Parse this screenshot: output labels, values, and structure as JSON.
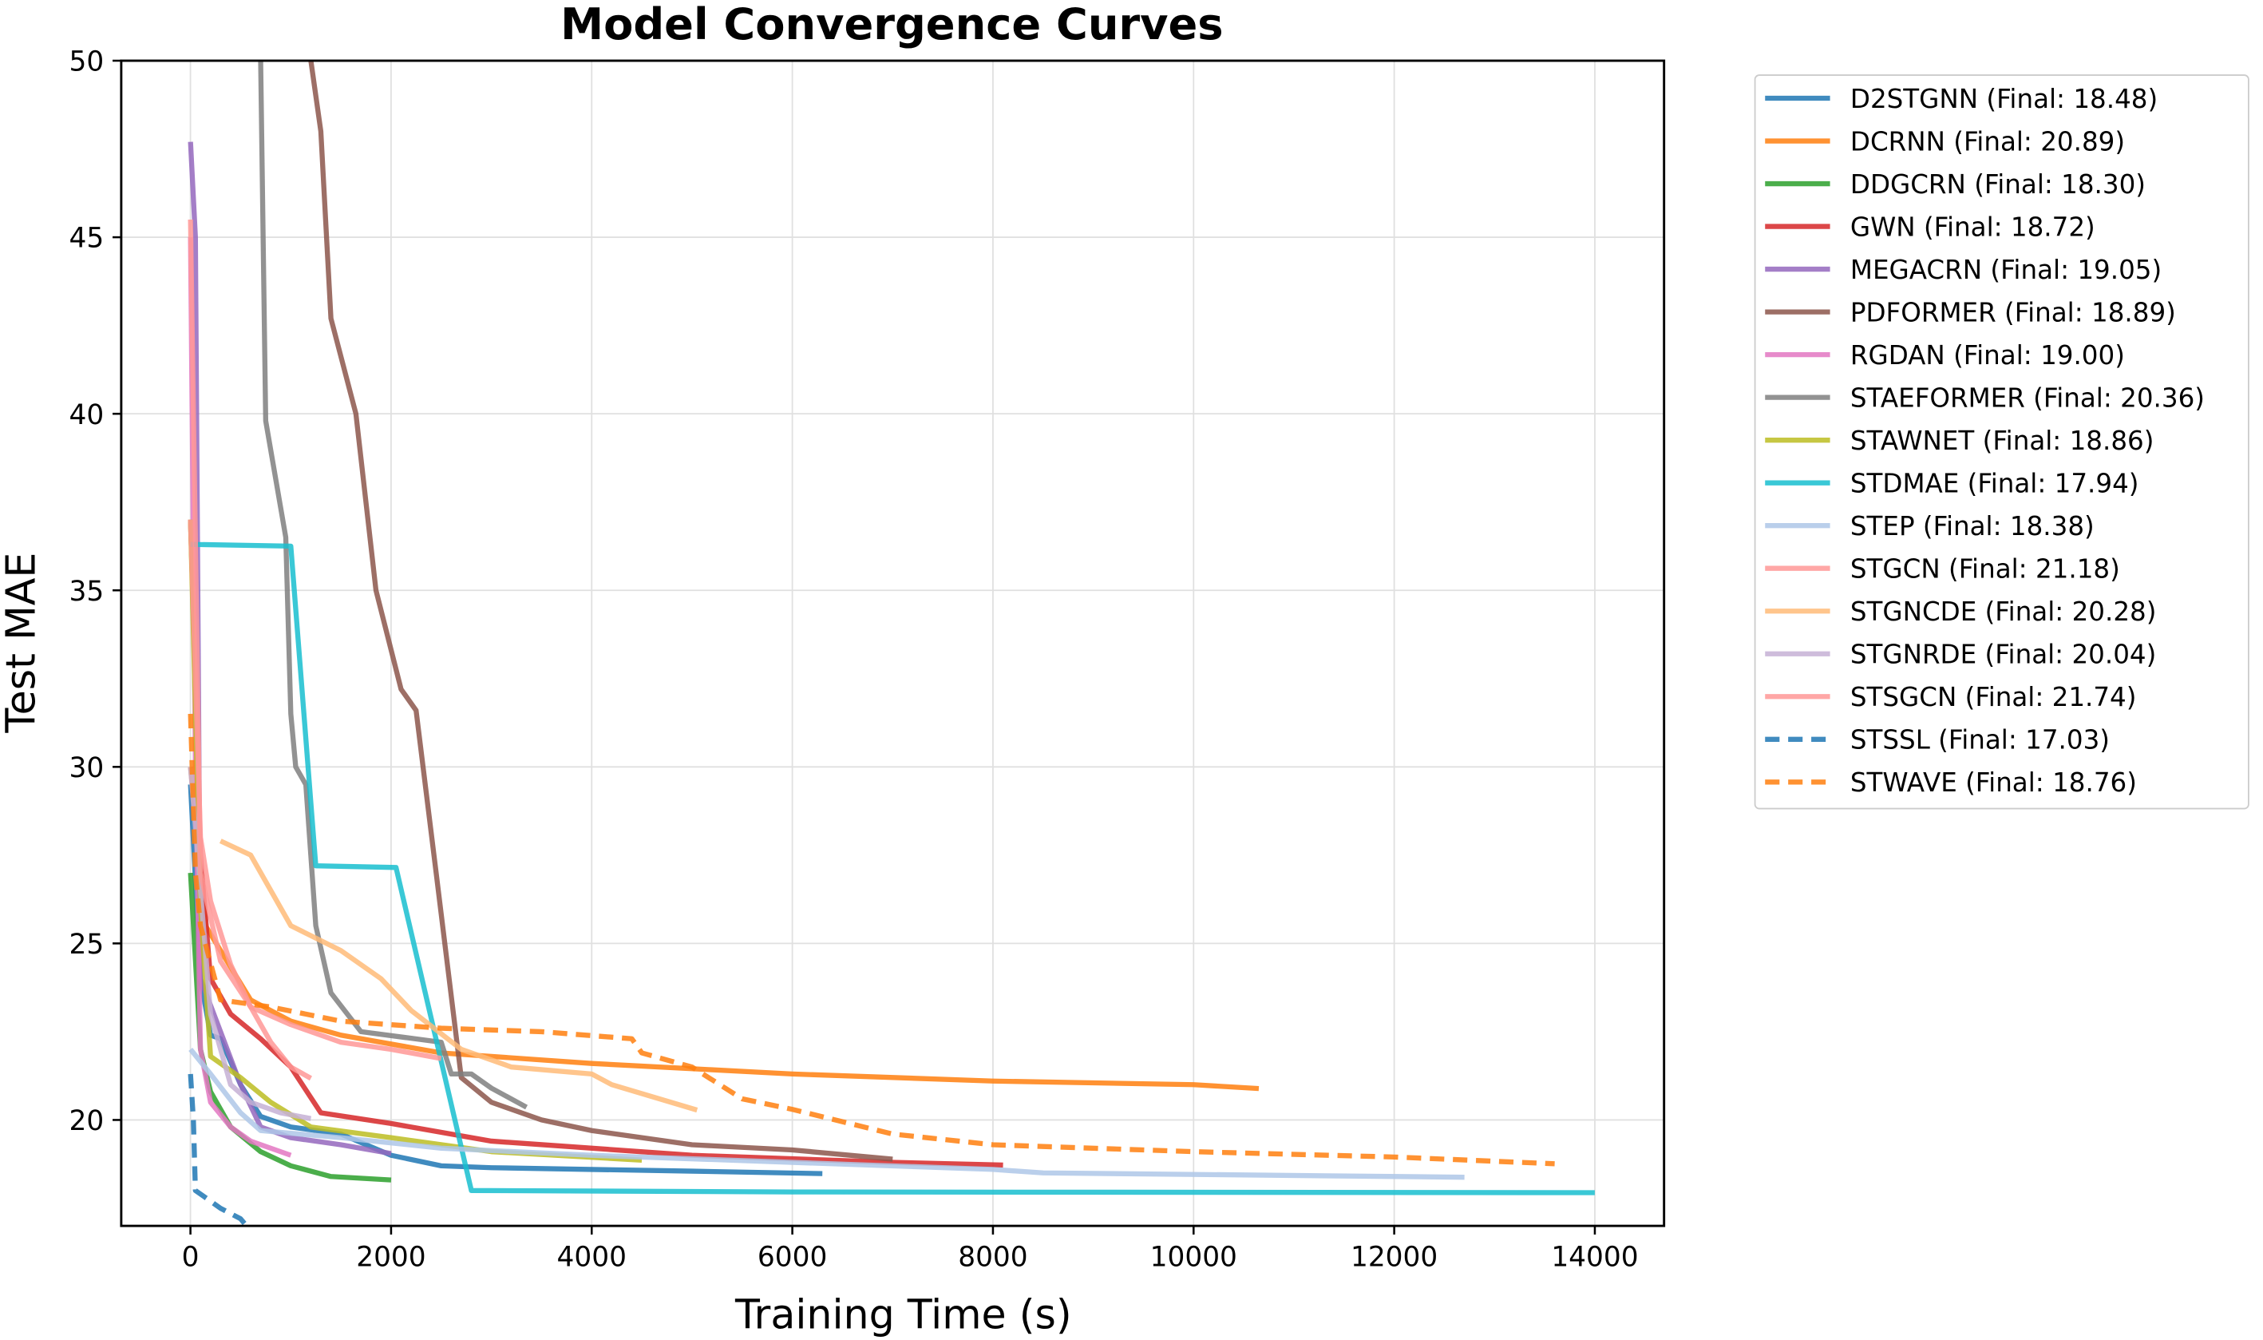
{
  "chart_data": {
    "type": "line",
    "title": "Model Convergence Curves",
    "xlabel": "Training Time (s)",
    "ylabel": "Test MAE",
    "xlim": [
      -690,
      14690
    ],
    "ylim": [
      17.0,
      50
    ],
    "xticks": [
      0,
      2000,
      4000,
      6000,
      8000,
      10000,
      12000,
      14000
    ],
    "yticks": [
      20,
      25,
      30,
      35,
      40,
      45,
      50
    ],
    "grid": true,
    "legend_position": "outside-right",
    "series": [
      {
        "name": "D2STGNN (Final: 18.48)",
        "color": "#1f77b4",
        "dash": false,
        "points": [
          [
            0,
            29.5
          ],
          [
            100,
            24
          ],
          [
            200,
            22.4
          ],
          [
            300,
            22.3
          ],
          [
            500,
            21
          ],
          [
            700,
            20.1
          ],
          [
            1000,
            19.8
          ],
          [
            1500,
            19.6
          ],
          [
            2000,
            19.0
          ],
          [
            2500,
            18.7
          ],
          [
            3000,
            18.65
          ],
          [
            4000,
            18.6
          ],
          [
            5000,
            18.55
          ],
          [
            6300,
            18.48
          ]
        ]
      },
      {
        "name": "DCRNN (Final: 20.89)",
        "color": "#ff7f0e",
        "dash": false,
        "points": [
          [
            0,
            30
          ],
          [
            150,
            25.5
          ],
          [
            300,
            24.8
          ],
          [
            600,
            23.4
          ],
          [
            1000,
            22.8
          ],
          [
            1500,
            22.4
          ],
          [
            2500,
            21.9
          ],
          [
            4000,
            21.6
          ],
          [
            6000,
            21.3
          ],
          [
            8000,
            21.1
          ],
          [
            10000,
            21.0
          ],
          [
            10650,
            20.89
          ]
        ]
      },
      {
        "name": "DDGCRN (Final: 18.30)",
        "color": "#2ca02c",
        "dash": false,
        "points": [
          [
            0,
            27
          ],
          [
            100,
            22
          ],
          [
            200,
            20.8
          ],
          [
            400,
            19.8
          ],
          [
            700,
            19.1
          ],
          [
            1000,
            18.7
          ],
          [
            1400,
            18.4
          ],
          [
            2000,
            18.3
          ]
        ]
      },
      {
        "name": "GWN (Final: 18.72)",
        "color": "#d62728",
        "dash": false,
        "points": [
          [
            0,
            37
          ],
          [
            100,
            27.5
          ],
          [
            200,
            24
          ],
          [
            400,
            23
          ],
          [
            700,
            22.3
          ],
          [
            1000,
            21.5
          ],
          [
            1300,
            20.2
          ],
          [
            2000,
            19.9
          ],
          [
            3000,
            19.4
          ],
          [
            5000,
            19.0
          ],
          [
            7000,
            18.8
          ],
          [
            8100,
            18.72
          ]
        ]
      },
      {
        "name": "MEGACRN (Final: 19.05)",
        "color": "#9467bd",
        "dash": false,
        "points": [
          [
            0,
            47.7
          ],
          [
            50,
            45
          ],
          [
            100,
            24
          ],
          [
            300,
            22.5
          ],
          [
            500,
            21
          ],
          [
            700,
            19.8
          ],
          [
            1000,
            19.5
          ],
          [
            1500,
            19.3
          ],
          [
            2000,
            19.05
          ]
        ]
      },
      {
        "name": "PDFORMER (Final: 18.89)",
        "color": "#8c564b",
        "dash": false,
        "points": [
          [
            1200,
            50
          ],
          [
            1300,
            48
          ],
          [
            1400,
            42.7
          ],
          [
            1650,
            40
          ],
          [
            1850,
            35
          ],
          [
            2100,
            32.2
          ],
          [
            2250,
            31.6
          ],
          [
            2450,
            27
          ],
          [
            2700,
            21.2
          ],
          [
            3000,
            20.5
          ],
          [
            3500,
            20
          ],
          [
            4000,
            19.7
          ],
          [
            5000,
            19.3
          ],
          [
            6000,
            19.15
          ],
          [
            7000,
            18.89
          ]
        ]
      },
      {
        "name": "RGDAN (Final: 19.00)",
        "color": "#e377c2",
        "dash": false,
        "points": [
          [
            0,
            45
          ],
          [
            50,
            30
          ],
          [
            100,
            22
          ],
          [
            200,
            20.5
          ],
          [
            400,
            19.8
          ],
          [
            600,
            19.4
          ],
          [
            800,
            19.2
          ],
          [
            1000,
            19.0
          ]
        ]
      },
      {
        "name": "STAEFORMER (Final: 20.36)",
        "color": "#7f7f7f",
        "dash": false,
        "points": [
          [
            700,
            50
          ],
          [
            750,
            39.8
          ],
          [
            950,
            36.5
          ],
          [
            1000,
            31.5
          ],
          [
            1050,
            30
          ],
          [
            1150,
            29.5
          ],
          [
            1250,
            25.5
          ],
          [
            1400,
            23.6
          ],
          [
            1700,
            22.5
          ],
          [
            2500,
            22.2
          ],
          [
            2600,
            21.3
          ],
          [
            2800,
            21.3
          ],
          [
            3000,
            20.9
          ],
          [
            3350,
            20.36
          ]
        ]
      },
      {
        "name": "STAWNET (Final: 18.86)",
        "color": "#bcbd22",
        "dash": false,
        "points": [
          [
            0,
            37
          ],
          [
            100,
            26
          ],
          [
            200,
            21.8
          ],
          [
            500,
            21.2
          ],
          [
            800,
            20.5
          ],
          [
            1200,
            19.8
          ],
          [
            2000,
            19.5
          ],
          [
            3000,
            19.1
          ],
          [
            4500,
            18.86
          ]
        ]
      },
      {
        "name": "STDMAE (Final: 17.94)",
        "color": "#17becf",
        "dash": false,
        "points": [
          [
            0,
            36.3
          ],
          [
            1000,
            36.25
          ],
          [
            1250,
            27.2
          ],
          [
            2050,
            27.15
          ],
          [
            2800,
            18.0
          ],
          [
            6000,
            17.96
          ],
          [
            14000,
            17.94
          ]
        ]
      },
      {
        "name": "STEP (Final: 18.38)",
        "color": "#aec7e8",
        "dash": false,
        "points": [
          [
            0,
            22
          ],
          [
            200,
            21.3
          ],
          [
            500,
            20.2
          ],
          [
            700,
            19.7
          ],
          [
            1500,
            19.5
          ],
          [
            2500,
            19.2
          ],
          [
            4000,
            19.0
          ],
          [
            6000,
            18.8
          ],
          [
            8000,
            18.6
          ],
          [
            8500,
            18.5
          ],
          [
            12700,
            18.38
          ]
        ]
      },
      {
        "name": "STGCN (Final: 21.18)",
        "color": "#ff9896",
        "dash": false,
        "points": [
          [
            0,
            37
          ],
          [
            100,
            28
          ],
          [
            200,
            26.2
          ],
          [
            400,
            24.4
          ],
          [
            600,
            23.2
          ],
          [
            800,
            22.2
          ],
          [
            1000,
            21.5
          ],
          [
            1200,
            21.18
          ]
        ]
      },
      {
        "name": "STGNCDE (Final: 20.28)",
        "color": "#ffbb78",
        "dash": false,
        "points": [
          [
            300,
            27.9
          ],
          [
            600,
            27.5
          ],
          [
            1000,
            25.5
          ],
          [
            1500,
            24.8
          ],
          [
            1900,
            24
          ],
          [
            2200,
            23.1
          ],
          [
            2700,
            22
          ],
          [
            3200,
            21.5
          ],
          [
            4000,
            21.3
          ],
          [
            4200,
            21.0
          ],
          [
            5050,
            20.28
          ]
        ]
      },
      {
        "name": "STGNRDE (Final: 20.04)",
        "color": "#c5b0d5",
        "dash": false,
        "points": [
          [
            0,
            30
          ],
          [
            200,
            23
          ],
          [
            400,
            21
          ],
          [
            600,
            20.5
          ],
          [
            900,
            20.2
          ],
          [
            1200,
            20.04
          ]
        ]
      },
      {
        "name": "STSGCN (Final: 21.74)",
        "color": "#ff9896",
        "dash": false,
        "points": [
          [
            0,
            45.5
          ],
          [
            100,
            27
          ],
          [
            300,
            24.5
          ],
          [
            600,
            23.2
          ],
          [
            1000,
            22.7
          ],
          [
            1500,
            22.2
          ],
          [
            2000,
            22.0
          ],
          [
            2500,
            21.74
          ]
        ]
      },
      {
        "name": "STSSL (Final: 17.03)",
        "color": "#1f77b4",
        "dash": true,
        "points": [
          [
            0,
            21.3
          ],
          [
            30,
            20
          ],
          [
            50,
            18
          ],
          [
            150,
            17.8
          ],
          [
            300,
            17.5
          ],
          [
            500,
            17.2
          ],
          [
            550,
            17.03
          ]
        ]
      },
      {
        "name": "STWAVE (Final: 18.76)",
        "color": "#ff7f0e",
        "dash": true,
        "points": [
          [
            0,
            31.5
          ],
          [
            50,
            27
          ],
          [
            100,
            25.5
          ],
          [
            300,
            23.4
          ],
          [
            800,
            23.2
          ],
          [
            1500,
            22.8
          ],
          [
            2500,
            22.6
          ],
          [
            3500,
            22.5
          ],
          [
            4400,
            22.3
          ],
          [
            4500,
            21.9
          ],
          [
            5000,
            21.5
          ],
          [
            5500,
            20.6
          ],
          [
            6000,
            20.3
          ],
          [
            7000,
            19.6
          ],
          [
            8000,
            19.3
          ],
          [
            10000,
            19.1
          ],
          [
            12000,
            18.95
          ],
          [
            13600,
            18.76
          ]
        ]
      }
    ]
  }
}
